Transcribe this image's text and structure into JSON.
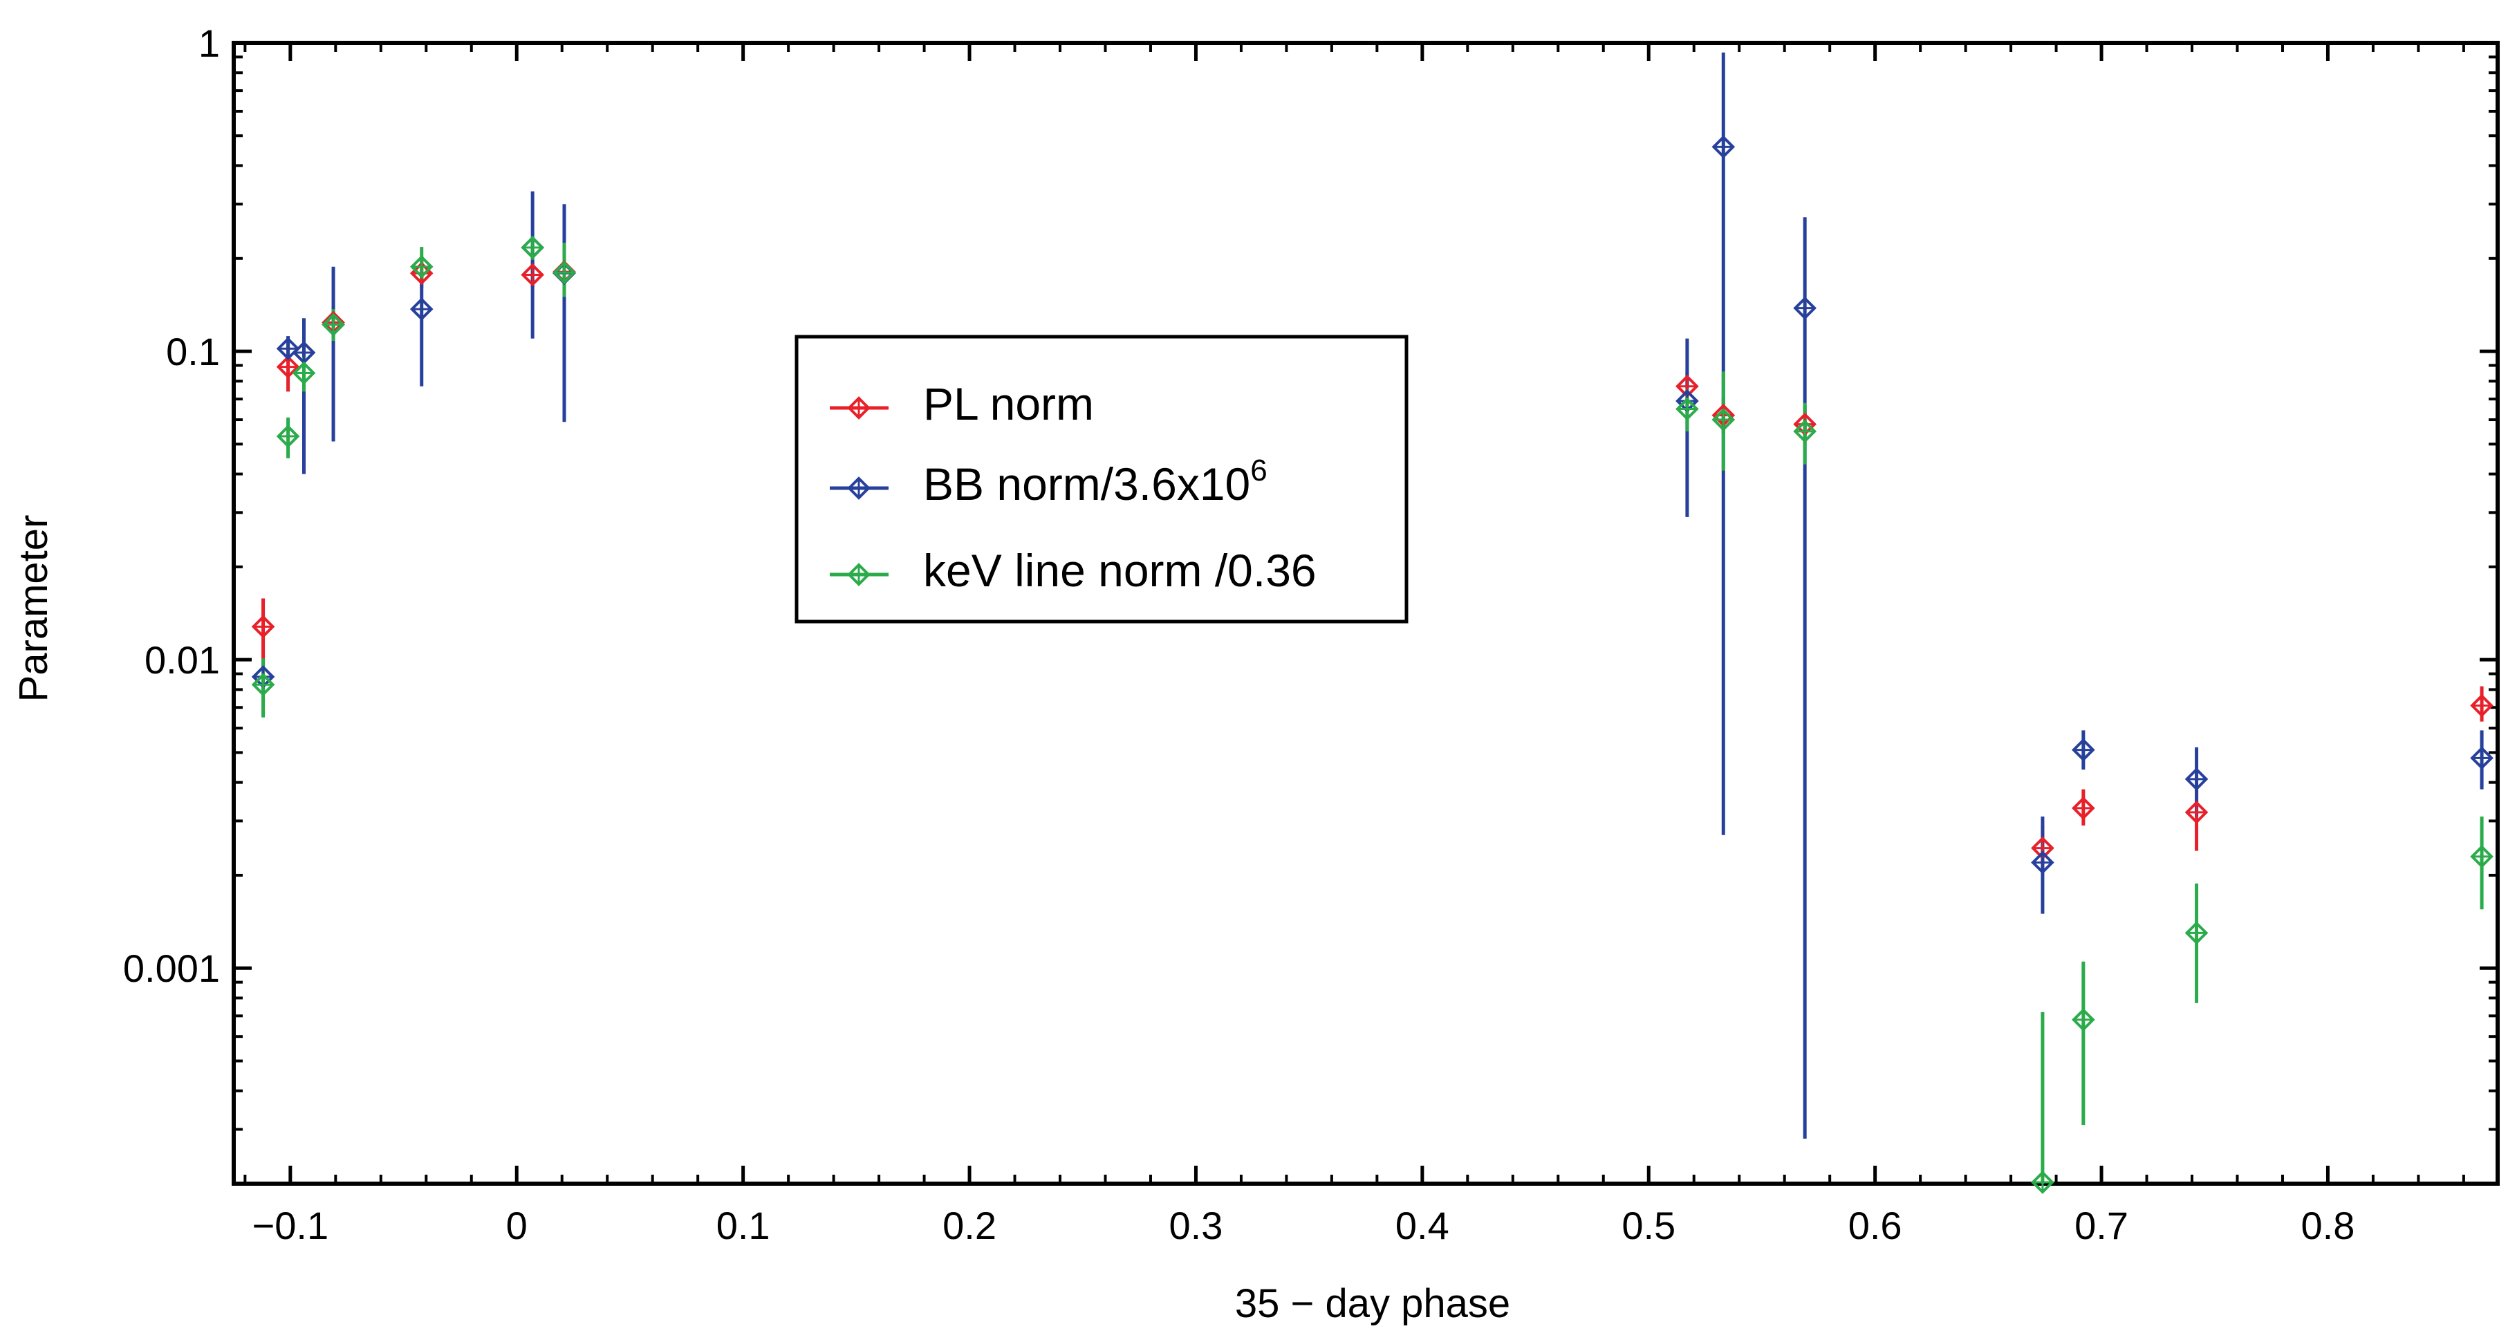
{
  "chart_data": {
    "type": "scatter",
    "xlabel": "35 − day phase",
    "ylabel": "Parameter",
    "xlim": [
      -0.125,
      0.875
    ],
    "ylim": [
      0.0002,
      1
    ],
    "yscale": "log",
    "grid": false,
    "legend_position": "center-left",
    "x_ticks": [
      -0.1,
      0,
      0.1,
      0.2,
      0.3,
      0.4,
      0.5,
      0.6,
      0.7,
      0.8
    ],
    "x_tick_labels": [
      "−0.1",
      "0",
      "0.1",
      "0.2",
      "0.3",
      "0.4",
      "0.5",
      "0.6",
      "0.7",
      "0.8"
    ],
    "y_ticks": [
      0.001,
      0.01,
      0.1,
      1
    ],
    "y_tick_labels": [
      "0.001",
      "0.01",
      "0.1",
      "1"
    ],
    "series": [
      {
        "name": "PL norm",
        "legend_label": "PL norm",
        "color": "#e8202a",
        "points": [
          {
            "x": -0.112,
            "y": 0.0128,
            "lo": 0.0098,
            "hi": 0.0158
          },
          {
            "x": -0.101,
            "y": 0.089,
            "lo": 0.074,
            "hi": 0.106
          },
          {
            "x": -0.094,
            "y": 0.099,
            "lo": 0.083,
            "hi": 0.114
          },
          {
            "x": -0.081,
            "y": 0.124,
            "lo": 0.109,
            "hi": 0.141
          },
          {
            "x": -0.042,
            "y": 0.179,
            "lo": 0.16,
            "hi": 0.198
          },
          {
            "x": 0.007,
            "y": 0.177,
            "lo": 0.16,
            "hi": 0.196
          },
          {
            "x": 0.021,
            "y": 0.181,
            "lo": 0.164,
            "hi": 0.199
          },
          {
            "x": 0.517,
            "y": 0.077,
            "lo": 0.068,
            "hi": 0.086
          },
          {
            "x": 0.533,
            "y": 0.062,
            "lo": 0.054,
            "hi": 0.071
          },
          {
            "x": 0.569,
            "y": 0.058,
            "lo": 0.051,
            "hi": 0.066
          },
          {
            "x": 0.674,
            "y": 0.00245,
            "lo": 0.0021,
            "hi": 0.0029
          },
          {
            "x": 0.692,
            "y": 0.0033,
            "lo": 0.0029,
            "hi": 0.0038
          },
          {
            "x": 0.742,
            "y": 0.0032,
            "lo": 0.0024,
            "hi": 0.0039
          },
          {
            "x": 0.868,
            "y": 0.0071,
            "lo": 0.0063,
            "hi": 0.0082
          }
        ]
      },
      {
        "name": "BB norm",
        "legend_label": "BB norm/3.6x10",
        "legend_sup": "6",
        "color": "#26409c",
        "points": [
          {
            "x": -0.112,
            "y": 0.0088,
            "lo": 0.0078,
            "hi": 0.0098
          },
          {
            "x": -0.101,
            "y": 0.102,
            "lo": 0.093,
            "hi": 0.112
          },
          {
            "x": -0.094,
            "y": 0.099,
            "lo": 0.04,
            "hi": 0.128
          },
          {
            "x": -0.081,
            "y": 0.122,
            "lo": 0.051,
            "hi": 0.188
          },
          {
            "x": -0.042,
            "y": 0.137,
            "lo": 0.077,
            "hi": 0.178
          },
          {
            "x": 0.007,
            "y": 0.217,
            "lo": 0.11,
            "hi": 0.33
          },
          {
            "x": 0.021,
            "y": 0.179,
            "lo": 0.059,
            "hi": 0.3
          },
          {
            "x": 0.517,
            "y": 0.069,
            "lo": 0.029,
            "hi": 0.11
          },
          {
            "x": 0.533,
            "y": 0.46,
            "lo": 0.0027,
            "hi": 0.93
          },
          {
            "x": 0.569,
            "y": 0.138,
            "lo": 0.00028,
            "hi": 0.272
          },
          {
            "x": 0.674,
            "y": 0.0022,
            "lo": 0.0015,
            "hi": 0.0031
          },
          {
            "x": 0.692,
            "y": 0.0051,
            "lo": 0.0044,
            "hi": 0.0059
          },
          {
            "x": 0.742,
            "y": 0.0041,
            "lo": 0.0031,
            "hi": 0.0052
          },
          {
            "x": 0.868,
            "y": 0.0048,
            "lo": 0.0038,
            "hi": 0.0059
          }
        ]
      },
      {
        "name": "keV line norm /0.36",
        "legend_label": "keV line norm /0.36",
        "color": "#2bab4a",
        "points": [
          {
            "x": -0.112,
            "y": 0.0083,
            "lo": 0.0065,
            "hi": 0.0101
          },
          {
            "x": -0.101,
            "y": 0.053,
            "lo": 0.045,
            "hi": 0.061
          },
          {
            "x": -0.094,
            "y": 0.085,
            "lo": 0.074,
            "hi": 0.096
          },
          {
            "x": -0.081,
            "y": 0.122,
            "lo": 0.108,
            "hi": 0.137
          },
          {
            "x": -0.042,
            "y": 0.188,
            "lo": 0.168,
            "hi": 0.218
          },
          {
            "x": 0.007,
            "y": 0.217,
            "lo": 0.198,
            "hi": 0.236
          },
          {
            "x": 0.021,
            "y": 0.18,
            "lo": 0.15,
            "hi": 0.225
          },
          {
            "x": 0.517,
            "y": 0.065,
            "lo": 0.055,
            "hi": 0.076
          },
          {
            "x": 0.533,
            "y": 0.06,
            "lo": 0.041,
            "hi": 0.086
          },
          {
            "x": 0.569,
            "y": 0.055,
            "lo": 0.043,
            "hi": 0.068
          },
          {
            "x": 0.674,
            "y": 0.0002,
            "lo": 0.0002,
            "hi": 0.00072
          },
          {
            "x": 0.692,
            "y": 0.00068,
            "lo": 0.00031,
            "hi": 0.00105
          },
          {
            "x": 0.742,
            "y": 0.0013,
            "lo": 0.00077,
            "hi": 0.00188
          },
          {
            "x": 0.868,
            "y": 0.0023,
            "lo": 0.00155,
            "hi": 0.0031
          }
        ]
      }
    ]
  }
}
